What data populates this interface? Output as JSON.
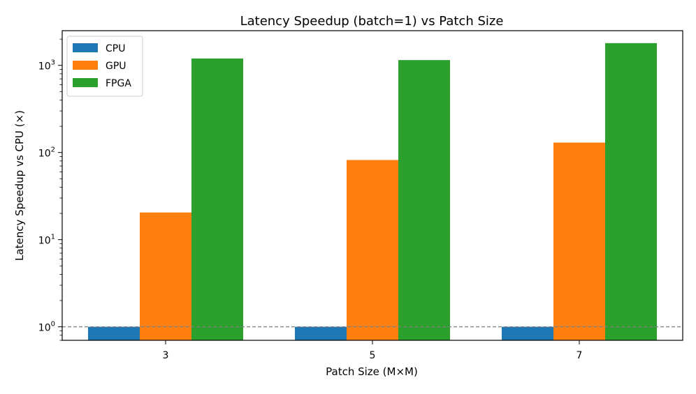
{
  "chart_data": {
    "type": "bar",
    "title": "Latency Speedup (batch=1) vs Patch Size",
    "xlabel": "Patch Size (M×M)",
    "ylabel": "Latency Speedup vs CPU (×)",
    "categories": [
      "3",
      "5",
      "7"
    ],
    "y_scale": "log",
    "ylim": [
      0.7,
      2500
    ],
    "yticks": [
      {
        "value": 1,
        "base": "10",
        "exp": "0"
      },
      {
        "value": 10,
        "base": "10",
        "exp": "1"
      },
      {
        "value": 100,
        "base": "10",
        "exp": "2"
      },
      {
        "value": 1000,
        "base": "10",
        "exp": "3"
      }
    ],
    "reference_line": {
      "value": 1,
      "style": "dashed",
      "color": "#808080"
    },
    "legend_position": "top-left",
    "grid": false,
    "series": [
      {
        "name": "CPU",
        "color": "#1f77b4",
        "values": [
          1,
          1,
          1
        ]
      },
      {
        "name": "GPU",
        "color": "#ff7f0e",
        "values": [
          20.5,
          82,
          130
        ]
      },
      {
        "name": "FPGA",
        "color": "#2ca02c",
        "values": [
          1200,
          1150,
          1800
        ]
      }
    ]
  }
}
